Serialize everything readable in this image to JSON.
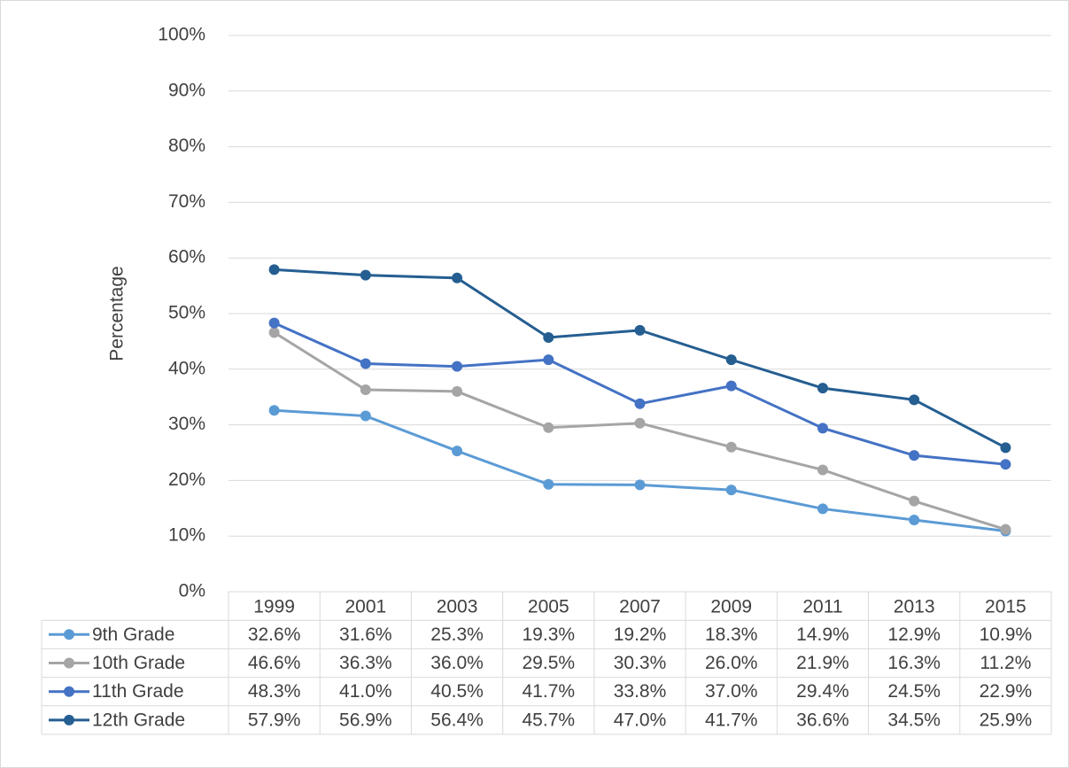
{
  "chart_data": {
    "type": "line",
    "y_label": "Percentage",
    "categories": [
      "1999",
      "2001",
      "2003",
      "2005",
      "2007",
      "2009",
      "2011",
      "2013",
      "2015"
    ],
    "series": [
      {
        "name": "9th Grade",
        "color": "#5b9bd5",
        "values": [
          32.6,
          31.6,
          25.3,
          19.3,
          19.2,
          18.3,
          14.9,
          12.9,
          10.9
        ],
        "value_labels": [
          "32.6%",
          "31.6%",
          "25.3%",
          "19.3%",
          "19.2%",
          "18.3%",
          "14.9%",
          "12.9%",
          "10.9%"
        ]
      },
      {
        "name": "10th Grade",
        "color": "#a5a5a5",
        "values": [
          46.6,
          36.3,
          36.0,
          29.5,
          30.3,
          26.0,
          21.9,
          16.3,
          11.2
        ],
        "value_labels": [
          "46.6%",
          "36.3%",
          "36.0%",
          "29.5%",
          "30.3%",
          "26.0%",
          "21.9%",
          "16.3%",
          "11.2%"
        ]
      },
      {
        "name": "11th Grade",
        "color": "#4472c4",
        "values": [
          48.3,
          41.0,
          40.5,
          41.7,
          33.8,
          37.0,
          29.4,
          24.5,
          22.9
        ],
        "value_labels": [
          "48.3%",
          "41.0%",
          "40.5%",
          "41.7%",
          "33.8%",
          "37.0%",
          "29.4%",
          "24.5%",
          "22.9%"
        ]
      },
      {
        "name": "12th Grade",
        "color": "#255e91",
        "values": [
          57.9,
          56.9,
          56.4,
          45.7,
          47.0,
          41.7,
          36.6,
          34.5,
          25.9
        ],
        "value_labels": [
          "57.9%",
          "56.9%",
          "56.4%",
          "45.7%",
          "47.0%",
          "41.7%",
          "36.6%",
          "34.5%",
          "25.9%"
        ]
      }
    ],
    "ylim": [
      0,
      100
    ],
    "yticks": [
      {
        "value": 0,
        "label": "0%"
      },
      {
        "value": 10,
        "label": "10%"
      },
      {
        "value": 20,
        "label": "20%"
      },
      {
        "value": 30,
        "label": "30%"
      },
      {
        "value": 40,
        "label": "40%"
      },
      {
        "value": 50,
        "label": "50%"
      },
      {
        "value": 60,
        "label": "60%"
      },
      {
        "value": 70,
        "label": "70%"
      },
      {
        "value": 80,
        "label": "80%"
      },
      {
        "value": 90,
        "label": "90%"
      },
      {
        "value": 100,
        "label": "100%"
      }
    ],
    "grid": true
  }
}
